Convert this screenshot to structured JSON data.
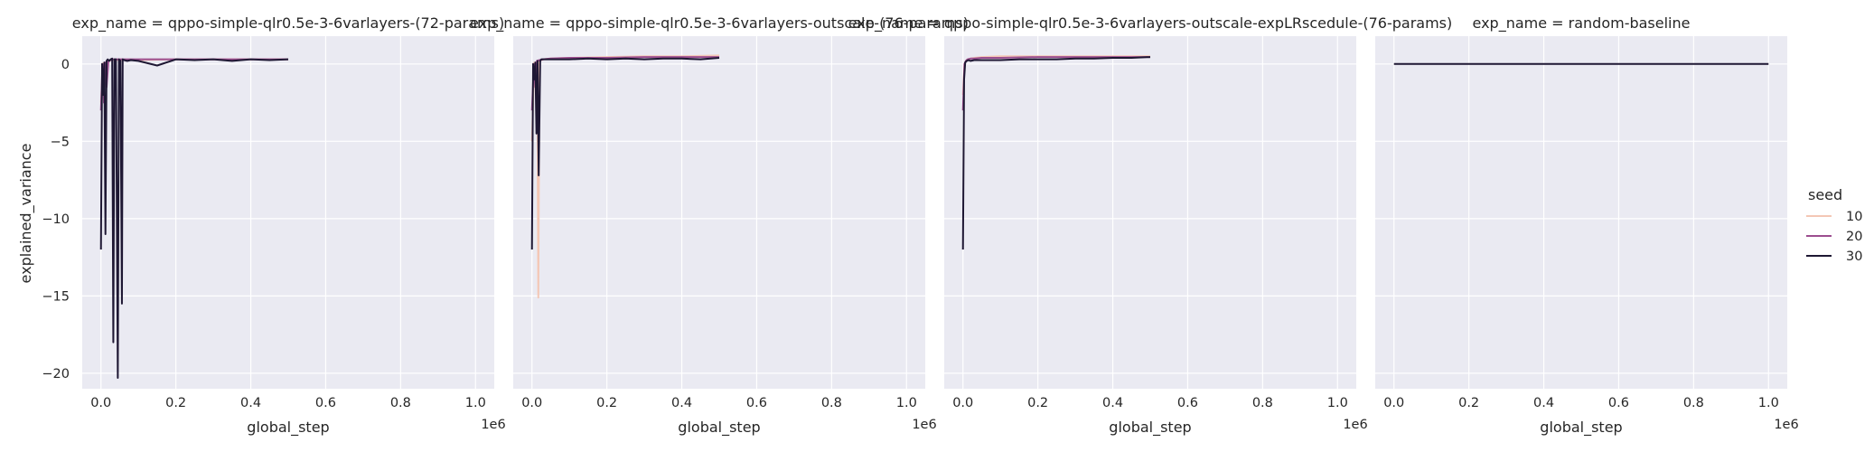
{
  "chart_data": {
    "type": "line",
    "layout": "facet-grid",
    "ylabel": "explained_variance",
    "xlabel": "global_step",
    "x_offset_label": "1e6",
    "ylim": [
      -21,
      1.8
    ],
    "xlim": [
      -0.05,
      1.05
    ],
    "x_scale_note": "x values in units of 1e6 steps",
    "x_ticks": [
      0.0,
      0.2,
      0.4,
      0.6,
      0.8,
      1.0
    ],
    "x_tick_labels": [
      "0.0",
      "0.2",
      "0.4",
      "0.6",
      "0.8",
      "1.0"
    ],
    "y_ticks": [
      0,
      -5,
      -10,
      -15,
      -20
    ],
    "y_tick_labels": [
      "0",
      "−5",
      "−10",
      "−15",
      "−20"
    ],
    "grid": true,
    "legend": {
      "title": "seed",
      "placement": "right",
      "entries": [
        {
          "label": "10",
          "color": "#f4c7b5"
        },
        {
          "label": "20",
          "color": "#9c4e8f"
        },
        {
          "label": "30",
          "color": "#1e1733"
        }
      ]
    },
    "panels": [
      {
        "title": "exp_name = qppo-simple-qlr0.5e-3-6varlayers-(72-params)",
        "series": [
          {
            "name": "10",
            "x": [
              0.0,
              0.006,
              0.009,
              0.012,
              0.016,
              0.02,
              0.03,
              0.05,
              0.1,
              0.2,
              0.3,
              0.4,
              0.5
            ],
            "y": [
              -2.5,
              0.05,
              -0.8,
              0.1,
              -0.5,
              0.2,
              0.25,
              0.25,
              0.25,
              0.3,
              0.3,
              0.3,
              0.3
            ]
          },
          {
            "name": "20",
            "x": [
              0.0,
              0.004,
              0.008,
              0.012,
              0.015,
              0.02,
              0.03,
              0.05,
              0.1,
              0.2,
              0.3,
              0.4,
              0.5
            ],
            "y": [
              -3.0,
              0.0,
              -2.5,
              0.1,
              -1.5,
              0.2,
              0.3,
              0.3,
              0.3,
              0.3,
              0.3,
              0.3,
              0.3
            ]
          },
          {
            "name": "30",
            "x": [
              0.0,
              0.003,
              0.006,
              0.009,
              0.012,
              0.015,
              0.018,
              0.022,
              0.026,
              0.03,
              0.033,
              0.036,
              0.04,
              0.045,
              0.048,
              0.052,
              0.056,
              0.058,
              0.062,
              0.07,
              0.08,
              0.1,
              0.15,
              0.2,
              0.25,
              0.3,
              0.35,
              0.4,
              0.45,
              0.5
            ],
            "y": [
              -12.0,
              0.0,
              -2.0,
              0.1,
              -11.0,
              0.2,
              0.3,
              0.2,
              0.3,
              0.35,
              -18.0,
              0.3,
              0.3,
              -20.3,
              0.3,
              0.2,
              -15.5,
              0.3,
              0.25,
              0.2,
              0.25,
              0.2,
              -0.1,
              0.3,
              0.25,
              0.3,
              0.2,
              0.3,
              0.25,
              0.3
            ]
          }
        ]
      },
      {
        "title": "exp_name = qppo-simple-qlr0.5e-3-6varlayers-outscale-(76-params)",
        "series": [
          {
            "name": "10",
            "x": [
              0.0,
              0.006,
              0.01,
              0.014,
              0.017,
              0.02,
              0.03,
              0.05,
              0.1,
              0.2,
              0.3,
              0.4,
              0.5
            ],
            "y": [
              -5.0,
              0.1,
              -1.0,
              0.2,
              -15.1,
              0.2,
              0.3,
              0.35,
              0.4,
              0.45,
              0.5,
              0.5,
              0.55
            ]
          },
          {
            "name": "20",
            "x": [
              0.0,
              0.005,
              0.009,
              0.013,
              0.02,
              0.03,
              0.05,
              0.1,
              0.2,
              0.3,
              0.4,
              0.5
            ],
            "y": [
              -3.0,
              0.0,
              -1.5,
              0.2,
              0.25,
              0.3,
              0.35,
              0.4,
              0.4,
              0.45,
              0.45,
              0.45
            ]
          },
          {
            "name": "30",
            "x": [
              0.0,
              0.003,
              0.006,
              0.009,
              0.012,
              0.015,
              0.018,
              0.022,
              0.025,
              0.03,
              0.05,
              0.1,
              0.15,
              0.2,
              0.25,
              0.3,
              0.35,
              0.4,
              0.45,
              0.5
            ],
            "y": [
              -12.0,
              0.0,
              -1.0,
              0.1,
              -4.5,
              0.2,
              -7.2,
              0.2,
              0.3,
              0.3,
              0.3,
              0.3,
              0.35,
              0.3,
              0.35,
              0.3,
              0.35,
              0.35,
              0.3,
              0.4
            ]
          }
        ]
      },
      {
        "title": "exp_name = qppo-simple-qlr0.5e-3-6varlayers-outscale-expLRscedule-(76-params)",
        "series": [
          {
            "name": "10",
            "x": [
              0.0,
              0.004,
              0.008,
              0.012,
              0.02,
              0.03,
              0.05,
              0.1,
              0.2,
              0.3,
              0.4,
              0.5
            ],
            "y": [
              -2.0,
              0.0,
              0.2,
              0.3,
              0.35,
              0.4,
              0.45,
              0.5,
              0.5,
              0.5,
              0.5,
              0.5
            ]
          },
          {
            "name": "20",
            "x": [
              0.0,
              0.004,
              0.008,
              0.012,
              0.02,
              0.03,
              0.05,
              0.1,
              0.2,
              0.3,
              0.4,
              0.5
            ],
            "y": [
              -3.0,
              0.0,
              0.2,
              0.3,
              0.35,
              0.35,
              0.4,
              0.4,
              0.45,
              0.45,
              0.45,
              0.45
            ]
          },
          {
            "name": "30",
            "x": [
              0.0,
              0.003,
              0.006,
              0.01,
              0.015,
              0.02,
              0.03,
              0.05,
              0.1,
              0.15,
              0.2,
              0.25,
              0.3,
              0.35,
              0.4,
              0.45,
              0.5
            ],
            "y": [
              -12.0,
              -1.0,
              0.1,
              0.2,
              0.25,
              0.2,
              0.25,
              0.25,
              0.25,
              0.3,
              0.3,
              0.3,
              0.35,
              0.35,
              0.4,
              0.4,
              0.45
            ]
          }
        ]
      },
      {
        "title": "exp_name = random-baseline",
        "series": [
          {
            "name": "30",
            "x": [
              0.0,
              0.25,
              0.5,
              0.75,
              1.0
            ],
            "y": [
              0.0,
              0.0,
              0.0,
              0.0,
              0.0
            ]
          }
        ]
      }
    ]
  },
  "colors": {
    "panel_background": "#eaeaf2",
    "grid": "#ffffff",
    "seed_10": "#f4c7b5",
    "seed_20": "#9c4e8f",
    "seed_30": "#1e1733"
  }
}
